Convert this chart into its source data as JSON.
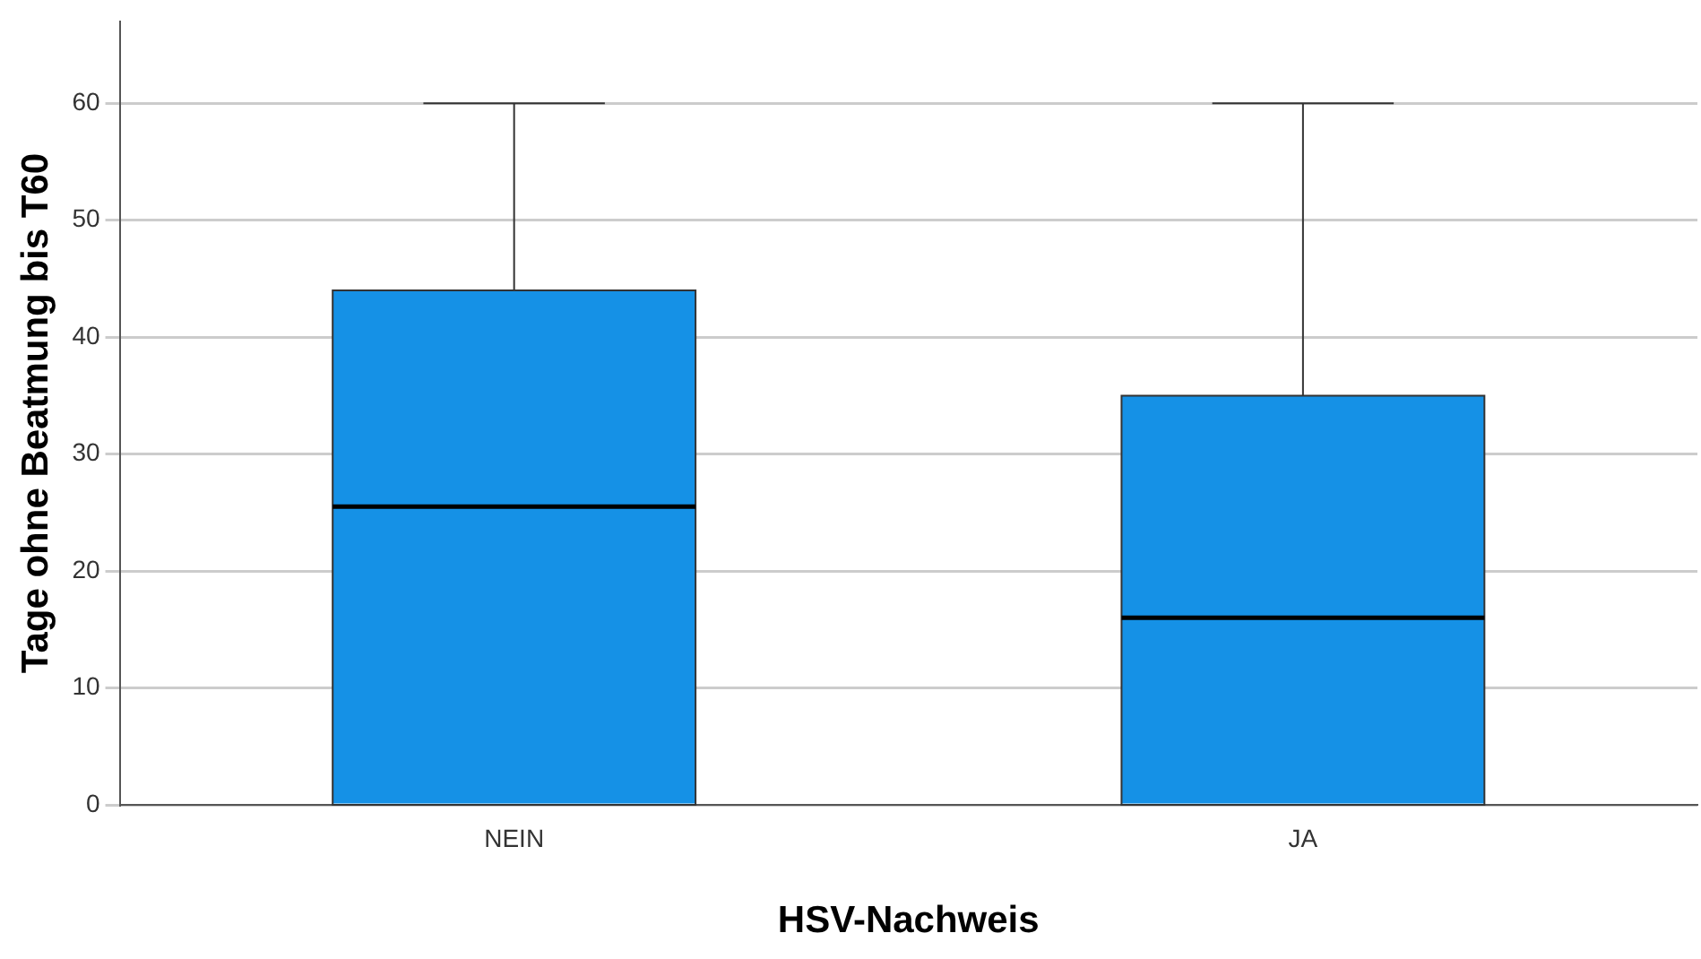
{
  "chart_data": {
    "type": "box",
    "xlabel": "HSV-Nachweis",
    "ylabel": "Tage ohne Beatmung bis T60",
    "categories": [
      "NEIN",
      "JA"
    ],
    "boxes": [
      {
        "low": 0,
        "q1": 0,
        "median": 25.5,
        "q3": 44,
        "high": 60
      },
      {
        "low": 0,
        "q1": 0,
        "median": 16,
        "q3": 35,
        "high": 60
      }
    ],
    "color": "#1591e6",
    "ylim": [
      0,
      67
    ],
    "yticks": [
      0,
      10,
      20,
      30,
      40,
      50,
      60
    ],
    "grid": "y"
  }
}
